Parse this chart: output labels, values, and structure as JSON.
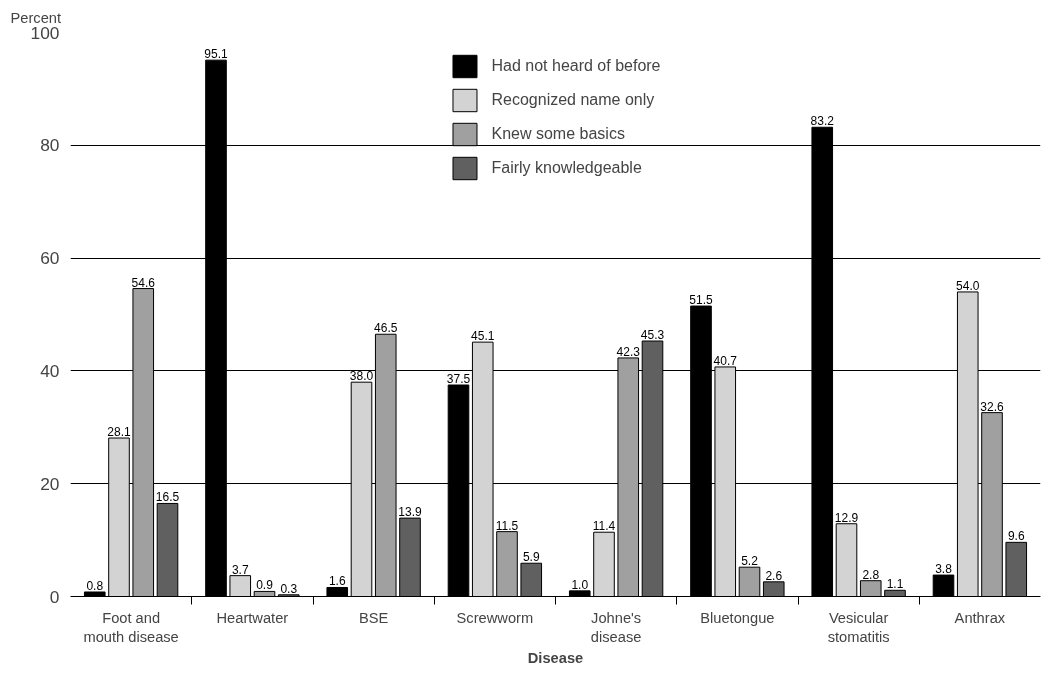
{
  "chart_data": {
    "type": "bar",
    "categories": [
      "Foot and\nmouth disease",
      "Heartwater",
      "BSE",
      "Screwworm",
      "Johne's\ndisease",
      "Bluetongue",
      "Vesicular\nstomatitis",
      "Anthrax"
    ],
    "series": [
      {
        "name": "Had not heard of before",
        "color": "#000000",
        "values": [
          0.8,
          95.1,
          1.6,
          37.5,
          1.0,
          51.5,
          83.2,
          3.8
        ],
        "value_labels": [
          "0.8",
          "95.1",
          "1.6",
          "37.5",
          "1.0",
          "51.5",
          "83.2",
          "3.8"
        ]
      },
      {
        "name": "Recognized name only",
        "color": "#d3d3d3",
        "values": [
          28.1,
          3.7,
          38.0,
          45.1,
          11.4,
          40.7,
          12.9,
          54.0
        ],
        "value_labels": [
          "28.1",
          "3.7",
          "38.0",
          "45.1",
          "11.4",
          "40.7",
          "12.9",
          "54.0"
        ]
      },
      {
        "name": "Knew some basics",
        "color": "#a0a0a0",
        "values": [
          54.6,
          0.9,
          46.5,
          11.5,
          42.3,
          5.2,
          2.8,
          32.6
        ],
        "value_labels": [
          "54.6",
          "0.9",
          "46.5",
          "11.5",
          "42.3",
          "5.2",
          "2.8",
          "32.6"
        ]
      },
      {
        "name": "Fairly knowledgeable",
        "color": "#606060",
        "values": [
          16.5,
          0.3,
          13.9,
          5.9,
          45.3,
          2.6,
          1.1,
          9.6
        ],
        "value_labels": [
          "16.5",
          "0.3",
          "13.9",
          "5.9",
          "45.3",
          "2.6",
          "1.1",
          "9.6"
        ]
      }
    ],
    "xlabel": "Disease",
    "ylabel": "Percent",
    "ylim": [
      0,
      100
    ],
    "yticks": [
      0,
      20,
      40,
      60,
      80,
      100
    ],
    "grid": "y",
    "legend": "top"
  }
}
